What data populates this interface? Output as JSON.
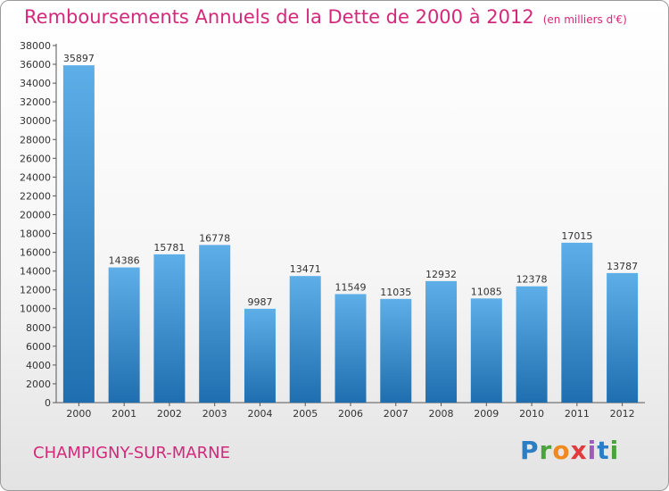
{
  "title": "Remboursements Annuels de la Dette de 2000 à 2012",
  "unit": "(en milliers d'€)",
  "city": "CHAMPIGNY-SUR-MARNE",
  "logo": "Proxiti",
  "colors": {
    "title": "#d4287a",
    "bar_top": "#5eaee8",
    "bar_bottom": "#1f6fb0"
  },
  "chart_data": {
    "type": "bar",
    "categories": [
      "2000",
      "2001",
      "2002",
      "2003",
      "2004",
      "2005",
      "2006",
      "2007",
      "2008",
      "2009",
      "2010",
      "2011",
      "2012"
    ],
    "values": [
      35897,
      14386,
      15781,
      16778,
      9987,
      13471,
      11549,
      11035,
      12932,
      11085,
      12378,
      17015,
      13787
    ],
    "ylim": [
      0,
      38000
    ],
    "ytick_step": 2000,
    "grid": false,
    "legend": "none"
  }
}
